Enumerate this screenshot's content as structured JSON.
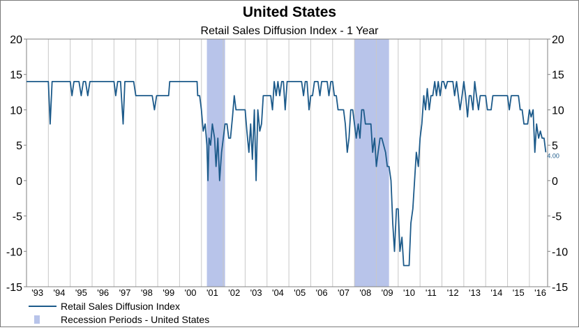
{
  "chart_data": {
    "type": "line",
    "title": "United States",
    "subtitle": "Retail Sales Diffusion Index - 1 Year",
    "ylim": [
      -15,
      20
    ],
    "yticks": [
      20,
      15,
      10,
      5,
      0,
      -5,
      -10,
      -15
    ],
    "xlim": [
      1993.0,
      2016.833
    ],
    "xticks": [
      {
        "label": "'93",
        "at": 1993.5
      },
      {
        "label": "'94",
        "at": 1994.5
      },
      {
        "label": "'95",
        "at": 1995.5
      },
      {
        "label": "'96",
        "at": 1996.5
      },
      {
        "label": "'97",
        "at": 1997.5
      },
      {
        "label": "'98",
        "at": 1998.5
      },
      {
        "label": "'99",
        "at": 1999.5
      },
      {
        "label": "'00",
        "at": 2000.5
      },
      {
        "label": "'01",
        "at": 2001.5
      },
      {
        "label": "'02",
        "at": 2002.5
      },
      {
        "label": "'03",
        "at": 2003.5
      },
      {
        "label": "'04",
        "at": 2004.5
      },
      {
        "label": "'05",
        "at": 2005.5
      },
      {
        "label": "'06",
        "at": 2006.5
      },
      {
        "label": "'07",
        "at": 2007.5
      },
      {
        "label": "'08",
        "at": 2008.5
      },
      {
        "label": "'09",
        "at": 2009.5
      },
      {
        "label": "'10",
        "at": 2010.5
      },
      {
        "label": "'11",
        "at": 2011.5
      },
      {
        "label": "'12",
        "at": 2012.5
      },
      {
        "label": "'13",
        "at": 2013.5
      },
      {
        "label": "'14",
        "at": 2014.5
      },
      {
        "label": "'15",
        "at": 2015.5
      },
      {
        "label": "'16",
        "at": 2016.5
      }
    ],
    "grid": "vertical",
    "legend_position": "bottom-left",
    "end_label": "4.00",
    "colors": {
      "line": "#1c5a8a",
      "recession": "#b8c4ea",
      "grid": "#c8c8c8"
    },
    "series": [
      {
        "name": "Retail Sales Diffusion Index",
        "points": [
          [
            1993.0,
            14
          ],
          [
            1994.0,
            14
          ],
          [
            1994.08,
            8
          ],
          [
            1994.17,
            14
          ],
          [
            1994.5,
            14
          ],
          [
            1995.0,
            14
          ],
          [
            1995.08,
            12
          ],
          [
            1995.17,
            14
          ],
          [
            1995.4,
            14
          ],
          [
            1995.5,
            12
          ],
          [
            1995.6,
            14
          ],
          [
            1995.7,
            14
          ],
          [
            1995.8,
            12
          ],
          [
            1995.9,
            14
          ],
          [
            1997.0,
            14
          ],
          [
            1997.08,
            12
          ],
          [
            1997.17,
            14
          ],
          [
            1997.3,
            14
          ],
          [
            1997.42,
            8
          ],
          [
            1997.5,
            14
          ],
          [
            1997.9,
            14
          ],
          [
            1998.0,
            12
          ],
          [
            1998.1,
            12
          ],
          [
            1998.3,
            12
          ],
          [
            1998.5,
            12
          ],
          [
            1998.6,
            12
          ],
          [
            1998.75,
            12
          ],
          [
            1998.85,
            10
          ],
          [
            1998.95,
            12
          ],
          [
            1999.5,
            12
          ],
          [
            1999.55,
            14
          ],
          [
            2000.0,
            14
          ],
          [
            2000.5,
            14
          ],
          [
            2000.8,
            14
          ],
          [
            2000.83,
            12
          ],
          [
            2000.92,
            12
          ],
          [
            2001.0,
            10
          ],
          [
            2001.08,
            7
          ],
          [
            2001.17,
            8
          ],
          [
            2001.25,
            5
          ],
          [
            2001.3,
            0
          ],
          [
            2001.35,
            6
          ],
          [
            2001.42,
            5
          ],
          [
            2001.5,
            8
          ],
          [
            2001.6,
            6
          ],
          [
            2001.67,
            2
          ],
          [
            2001.75,
            6
          ],
          [
            2001.83,
            0
          ],
          [
            2001.92,
            4
          ],
          [
            2002.0,
            6
          ],
          [
            2002.08,
            8
          ],
          [
            2002.17,
            8
          ],
          [
            2002.25,
            6
          ],
          [
            2002.33,
            6
          ],
          [
            2002.42,
            9
          ],
          [
            2002.5,
            12
          ],
          [
            2002.58,
            10
          ],
          [
            2002.67,
            10
          ],
          [
            2002.75,
            10
          ],
          [
            2002.83,
            10
          ],
          [
            2002.92,
            10
          ],
          [
            2003.0,
            10
          ],
          [
            2003.08,
            7
          ],
          [
            2003.17,
            4
          ],
          [
            2003.25,
            8
          ],
          [
            2003.33,
            3
          ],
          [
            2003.42,
            10
          ],
          [
            2003.5,
            0
          ],
          [
            2003.58,
            10
          ],
          [
            2003.67,
            7
          ],
          [
            2003.75,
            8
          ],
          [
            2003.83,
            12
          ],
          [
            2003.92,
            12
          ],
          [
            2004.0,
            12
          ],
          [
            2004.08,
            12
          ],
          [
            2004.17,
            12
          ],
          [
            2004.25,
            10
          ],
          [
            2004.33,
            14
          ],
          [
            2004.42,
            12
          ],
          [
            2004.5,
            14
          ],
          [
            2004.58,
            12
          ],
          [
            2004.67,
            14
          ],
          [
            2004.75,
            14
          ],
          [
            2004.83,
            10
          ],
          [
            2004.92,
            14
          ],
          [
            2005.0,
            14
          ],
          [
            2005.58,
            14
          ],
          [
            2005.67,
            12
          ],
          [
            2005.75,
            14
          ],
          [
            2005.83,
            14
          ],
          [
            2005.92,
            10
          ],
          [
            2006.0,
            12
          ],
          [
            2006.08,
            12
          ],
          [
            2006.17,
            14
          ],
          [
            2006.25,
            14
          ],
          [
            2006.33,
            14
          ],
          [
            2006.42,
            12
          ],
          [
            2006.5,
            14
          ],
          [
            2006.58,
            14
          ],
          [
            2006.67,
            14
          ],
          [
            2006.75,
            14
          ],
          [
            2006.83,
            12
          ],
          [
            2006.92,
            14
          ],
          [
            2007.0,
            14
          ],
          [
            2007.08,
            12
          ],
          [
            2007.17,
            12
          ],
          [
            2007.25,
            10
          ],
          [
            2007.33,
            10
          ],
          [
            2007.42,
            10
          ],
          [
            2007.5,
            10
          ],
          [
            2007.58,
            8
          ],
          [
            2007.67,
            4
          ],
          [
            2007.75,
            6
          ],
          [
            2007.83,
            10
          ],
          [
            2007.92,
            10
          ],
          [
            2008.0,
            8
          ],
          [
            2008.08,
            6
          ],
          [
            2008.17,
            8
          ],
          [
            2008.25,
            6
          ],
          [
            2008.33,
            10
          ],
          [
            2008.42,
            10
          ],
          [
            2008.5,
            8
          ],
          [
            2008.58,
            8
          ],
          [
            2008.67,
            8
          ],
          [
            2008.75,
            8
          ],
          [
            2008.83,
            4
          ],
          [
            2008.92,
            6
          ],
          [
            2009.0,
            2
          ],
          [
            2009.08,
            4
          ],
          [
            2009.17,
            6
          ],
          [
            2009.25,
            6
          ],
          [
            2009.42,
            4
          ],
          [
            2009.5,
            2
          ],
          [
            2009.58,
            2
          ],
          [
            2009.67,
            0
          ],
          [
            2009.75,
            -6
          ],
          [
            2009.83,
            -10
          ],
          [
            2009.92,
            -4
          ],
          [
            2010.0,
            -4
          ],
          [
            2010.08,
            -10
          ],
          [
            2010.17,
            -8
          ],
          [
            2010.25,
            -12
          ],
          [
            2010.33,
            -12
          ],
          [
            2010.42,
            -12
          ],
          [
            2010.5,
            -12
          ],
          [
            2010.58,
            -6
          ],
          [
            2010.67,
            -4
          ],
          [
            2010.75,
            0
          ],
          [
            2010.83,
            4
          ],
          [
            2010.92,
            2
          ],
          [
            2011.0,
            6
          ],
          [
            2011.08,
            8
          ],
          [
            2011.17,
            12
          ],
          [
            2011.25,
            10
          ],
          [
            2011.33,
            13
          ],
          [
            2011.42,
            10
          ],
          [
            2011.5,
            12
          ],
          [
            2011.58,
            12
          ],
          [
            2011.67,
            14
          ],
          [
            2011.75,
            12
          ],
          [
            2011.83,
            14
          ],
          [
            2011.92,
            12
          ],
          [
            2012.0,
            14
          ],
          [
            2012.08,
            14
          ],
          [
            2012.17,
            13
          ],
          [
            2012.25,
            14
          ],
          [
            2012.33,
            14
          ],
          [
            2012.42,
            14
          ],
          [
            2012.5,
            14
          ],
          [
            2012.58,
            12
          ],
          [
            2012.67,
            14
          ],
          [
            2012.75,
            12
          ],
          [
            2012.83,
            10
          ],
          [
            2012.92,
            12
          ],
          [
            2013.0,
            14
          ],
          [
            2013.08,
            12
          ],
          [
            2013.17,
            9
          ],
          [
            2013.25,
            12
          ],
          [
            2013.33,
            12
          ],
          [
            2013.42,
            10
          ],
          [
            2013.5,
            14
          ],
          [
            2013.58,
            12
          ],
          [
            2013.67,
            10
          ],
          [
            2013.75,
            12
          ],
          [
            2013.83,
            12
          ],
          [
            2013.92,
            12
          ],
          [
            2014.0,
            12
          ],
          [
            2014.08,
            10
          ],
          [
            2014.17,
            10
          ],
          [
            2014.25,
            10
          ],
          [
            2014.33,
            12
          ],
          [
            2014.42,
            12
          ],
          [
            2014.5,
            12
          ],
          [
            2014.58,
            12
          ],
          [
            2014.67,
            12
          ],
          [
            2014.75,
            12
          ],
          [
            2014.83,
            12
          ],
          [
            2014.92,
            12
          ],
          [
            2015.0,
            12
          ],
          [
            2015.08,
            10
          ],
          [
            2015.17,
            12
          ],
          [
            2015.25,
            12
          ],
          [
            2015.33,
            12
          ],
          [
            2015.42,
            12
          ],
          [
            2015.5,
            12
          ],
          [
            2015.58,
            10
          ],
          [
            2015.67,
            10
          ],
          [
            2015.75,
            8
          ],
          [
            2015.83,
            8
          ],
          [
            2015.92,
            8
          ],
          [
            2016.0,
            10
          ],
          [
            2016.08,
            9
          ],
          [
            2016.17,
            10
          ],
          [
            2016.25,
            4
          ],
          [
            2016.33,
            8
          ],
          [
            2016.42,
            6
          ],
          [
            2016.5,
            7
          ],
          [
            2016.58,
            6
          ],
          [
            2016.67,
            6
          ],
          [
            2016.75,
            4
          ]
        ]
      },
      {
        "name": "Recession Periods - United States",
        "type": "band",
        "ranges": [
          [
            2001.25,
            2002.08
          ],
          [
            2008.0,
            2009.58
          ]
        ]
      }
    ]
  }
}
